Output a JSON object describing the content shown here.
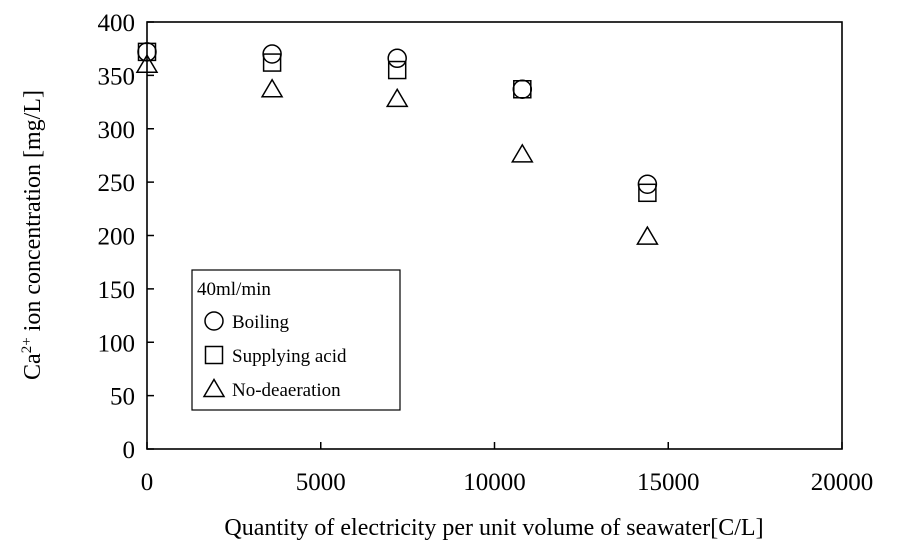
{
  "chart_data": {
    "type": "scatter",
    "xlabel": "Quantity of electricity per unit volume of seawater[C/L]",
    "ylabel_main": "Ca",
    "ylabel_sup": "2+",
    "ylabel_rest": " ion concentration [mg/L]",
    "xlim": [
      0,
      20000
    ],
    "ylim": [
      0,
      400
    ],
    "xticks": [
      0,
      5000,
      10000,
      15000,
      20000
    ],
    "yticks": [
      0,
      50,
      100,
      150,
      200,
      250,
      300,
      350,
      400
    ],
    "grid": false,
    "legend_title": "40ml/min",
    "legend_position": "lower-left",
    "series": [
      {
        "name": "Boiling",
        "marker": "circle",
        "x": [
          0,
          3600,
          7200,
          10800,
          14400
        ],
        "y": [
          372,
          370,
          366,
          337,
          248
        ]
      },
      {
        "name": "Supplying acid",
        "marker": "square",
        "x": [
          0,
          3600,
          7200,
          10800,
          14400
        ],
        "y": [
          372,
          362,
          355,
          337,
          240
        ]
      },
      {
        "name": "No-deaeration",
        "marker": "triangle",
        "x": [
          0,
          3600,
          7200,
          10800,
          14400
        ],
        "y": [
          360,
          337,
          328,
          276,
          199
        ]
      }
    ]
  }
}
